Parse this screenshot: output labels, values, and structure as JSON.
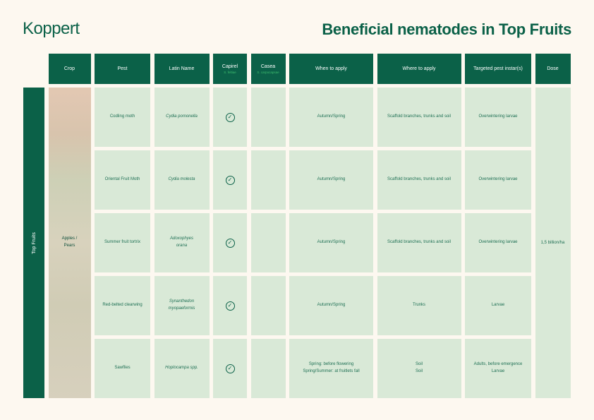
{
  "brand": "Koppert",
  "title": "Beneficial nematodes in Top Fruits",
  "headers": {
    "crop": "Crop",
    "pest": "Pest",
    "latin": "Latin Name",
    "capirel": "Capirel",
    "capirel_sub": "S. feltiae",
    "casea": "Casea",
    "casea_sub": "S. carpocapsae",
    "when": "When to apply",
    "where": "Where to apply",
    "targeted": "Targeted pest instar(s)",
    "dose": "Dose"
  },
  "group": "Top Fruits",
  "crop": "Apples / Pears",
  "dose": "1,5 billion/ha",
  "rows": [
    {
      "pest": "Codling moth",
      "latin": "Cydia pomonella",
      "capirel": true,
      "casea": false,
      "when": "Autumn/Spring",
      "where": "Scaffold branches, trunks and soil",
      "targeted": "Overwintering larvae"
    },
    {
      "pest": "Oriental Fruit Moth",
      "latin": "Cydia molesta",
      "capirel": true,
      "casea": false,
      "when": "Autumn/Spring",
      "where": "Scaffold branches, trunks and soil",
      "targeted": "Overwintering larvae"
    },
    {
      "pest": "Summer fruit tortrix",
      "latin": "Adoxophyes orana",
      "capirel": true,
      "casea": false,
      "when": "Autumn/Spring",
      "where": "Scaffold branches, trunks and soil",
      "targeted": "Overwintering larvae"
    },
    {
      "pest": "Red-belted clearwing",
      "latin": "Synanthedon myopaeformis",
      "capirel": true,
      "casea": false,
      "when": "Autumn/Spring",
      "where": "Trunks",
      "targeted": "Larvae"
    },
    {
      "pest": "Sawflies",
      "latin": "Hoplocampa spp.",
      "capirel": true,
      "casea": false,
      "when": "Spring: before flowering\nSpring/Summer: at fruitlets fall",
      "where": "Soil\nSoil",
      "targeted": "Adults, before emergence\nLarvae"
    }
  ],
  "check_icon": "check-circle-icon",
  "colors": {
    "primary": "#0b6148",
    "cell": "#d9e9d7",
    "background": "#fdf8f0"
  }
}
